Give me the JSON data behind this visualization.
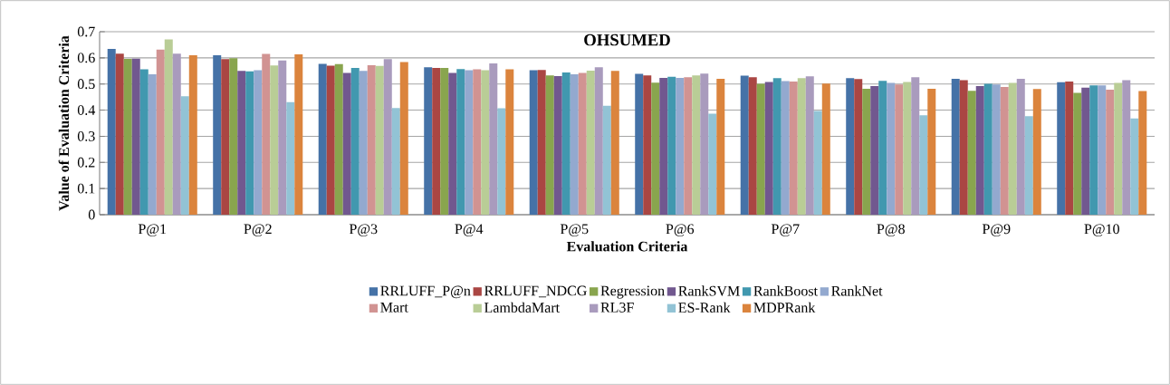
{
  "chart_data": {
    "type": "bar",
    "title": "OHSUMED",
    "xlabel": "Evaluation Criteria",
    "ylabel": "Value of Evaluation Criteria",
    "categories": [
      "P@1",
      "P@2",
      "P@3",
      "P@4",
      "P@5",
      "P@6",
      "P@7",
      "P@8",
      "P@9",
      "P@10"
    ],
    "series": [
      {
        "name": "RRLUFF_P@n",
        "color": "#4572a7",
        "values": [
          0.634,
          0.61,
          0.577,
          0.564,
          0.553,
          0.539,
          0.532,
          0.522,
          0.52,
          0.507
        ]
      },
      {
        "name": "RRLUFF_NDCG",
        "color": "#aa4643",
        "values": [
          0.616,
          0.595,
          0.57,
          0.561,
          0.554,
          0.533,
          0.526,
          0.519,
          0.515,
          0.509
        ]
      },
      {
        "name": "Regression",
        "color": "#89a54e",
        "values": [
          0.596,
          0.599,
          0.576,
          0.561,
          0.533,
          0.505,
          0.501,
          0.482,
          0.474,
          0.466
        ]
      },
      {
        "name": "RankSVM",
        "color": "#71588f",
        "values": [
          0.597,
          0.55,
          0.542,
          0.542,
          0.53,
          0.523,
          0.508,
          0.492,
          0.492,
          0.486
        ]
      },
      {
        "name": "RankBoost",
        "color": "#4198af",
        "values": [
          0.556,
          0.548,
          0.561,
          0.557,
          0.544,
          0.528,
          0.522,
          0.512,
          0.501,
          0.495
        ]
      },
      {
        "name": "RankNet",
        "color": "#93a9cf",
        "values": [
          0.537,
          0.553,
          0.55,
          0.553,
          0.537,
          0.523,
          0.511,
          0.504,
          0.498,
          0.495
        ]
      },
      {
        "name": "Mart",
        "color": "#d19392",
        "values": [
          0.632,
          0.615,
          0.572,
          0.556,
          0.542,
          0.526,
          0.509,
          0.498,
          0.489,
          0.478
        ]
      },
      {
        "name": "LambdaMart",
        "color": "#b9cd96",
        "values": [
          0.671,
          0.571,
          0.569,
          0.553,
          0.551,
          0.533,
          0.522,
          0.508,
          0.504,
          0.504
        ]
      },
      {
        "name": "RL3F",
        "color": "#a99bbd",
        "values": [
          0.616,
          0.59,
          0.595,
          0.579,
          0.564,
          0.54,
          0.529,
          0.526,
          0.52,
          0.515
        ]
      },
      {
        "name": "ES-Rank",
        "color": "#92c3d5",
        "values": [
          0.453,
          0.431,
          0.408,
          0.407,
          0.417,
          0.386,
          0.397,
          0.38,
          0.377,
          0.368
        ]
      },
      {
        "name": "MDPRank",
        "color": "#db843d",
        "values": [
          0.61,
          0.613,
          0.584,
          0.556,
          0.55,
          0.52,
          0.502,
          0.482,
          0.481,
          0.473
        ]
      }
    ],
    "ylim": [
      0,
      0.7
    ],
    "yticks": [
      0,
      0.1,
      0.2,
      0.3,
      0.4,
      0.5,
      0.6,
      0.7
    ],
    "grid": "y",
    "legend": "bottom"
  }
}
